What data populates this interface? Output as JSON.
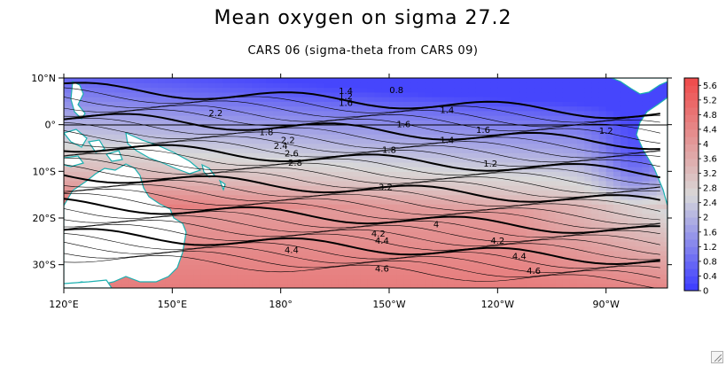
{
  "chart_data": {
    "type": "heatmap",
    "title": "Mean oxygen on sigma 27.2",
    "subtitle": "CARS 06 (sigma-theta from CARS 09)",
    "xlabel": "",
    "ylabel": "",
    "x_ticks": [
      {
        "lon": 120,
        "label": "120°E"
      },
      {
        "lon": 150,
        "label": "150°E"
      },
      {
        "lon": 180,
        "label": "180°"
      },
      {
        "lon": 210,
        "label": "150°W"
      },
      {
        "lon": 240,
        "label": "120°W"
      },
      {
        "lon": 270,
        "label": "90°W"
      }
    ],
    "y_ticks": [
      {
        "lat": 10,
        "label": "10°N"
      },
      {
        "lat": 0,
        "label": "0°"
      },
      {
        "lat": -10,
        "label": "10°S"
      },
      {
        "lat": -20,
        "label": "20°S"
      },
      {
        "lat": -30,
        "label": "30°S"
      }
    ],
    "xlim": [
      120,
      287
    ],
    "ylim": [
      -35,
      10
    ],
    "colorbar": {
      "min": 0,
      "max": 5.8,
      "levels": [
        "0",
        "0.4",
        "0.8",
        "1.2",
        "1.6",
        "2",
        "2.4",
        "2.8",
        "3.2",
        "3.6",
        "4",
        "4.4",
        "4.8",
        "5.2",
        "5.6"
      ],
      "color_low": "#3a3aff",
      "color_mid": "#d8d8d8",
      "color_high": "#f04a4a"
    },
    "contour_labels": [
      {
        "lon": 176,
        "lat": -2.2,
        "text": "1.8"
      },
      {
        "lon": 162,
        "lat": 1.8,
        "text": "2.2"
      },
      {
        "lon": 182,
        "lat": -4.0,
        "text": "2.2"
      },
      {
        "lon": 180,
        "lat": -5.2,
        "text": "2.4"
      },
      {
        "lon": 183,
        "lat": -6.8,
        "text": "2.6"
      },
      {
        "lon": 184,
        "lat": -8.8,
        "text": "2.8"
      },
      {
        "lon": 198,
        "lat": 6.6,
        "text": "1.4"
      },
      {
        "lon": 198,
        "lat": 5.4,
        "text": "1.2"
      },
      {
        "lon": 198,
        "lat": 4.0,
        "text": "1.6"
      },
      {
        "lon": 212,
        "lat": 6.8,
        "text": "0.8"
      },
      {
        "lon": 226,
        "lat": 2.5,
        "text": "1.4"
      },
      {
        "lon": 214,
        "lat": -0.5,
        "text": "1.6"
      },
      {
        "lon": 210,
        "lat": -6.0,
        "text": "1.8"
      },
      {
        "lon": 226,
        "lat": -4.0,
        "text": "1.4"
      },
      {
        "lon": 236,
        "lat": -1.8,
        "text": "1.6"
      },
      {
        "lon": 238,
        "lat": -9.0,
        "text": "1.2"
      },
      {
        "lon": 270,
        "lat": -2.0,
        "text": "1.2"
      },
      {
        "lon": 209,
        "lat": -14.0,
        "text": "3.2"
      },
      {
        "lon": 223,
        "lat": -22.0,
        "text": "4"
      },
      {
        "lon": 207,
        "lat": -24.0,
        "text": "4.2"
      },
      {
        "lon": 208,
        "lat": -25.5,
        "text": "4.4"
      },
      {
        "lon": 183,
        "lat": -27.5,
        "text": "4.4"
      },
      {
        "lon": 240,
        "lat": -25.5,
        "text": "4.2"
      },
      {
        "lon": 246,
        "lat": -28.8,
        "text": "4.4"
      },
      {
        "lon": 208,
        "lat": -31.5,
        "text": "4.6"
      },
      {
        "lon": 250,
        "lat": -32.0,
        "text": "4.6"
      }
    ]
  }
}
